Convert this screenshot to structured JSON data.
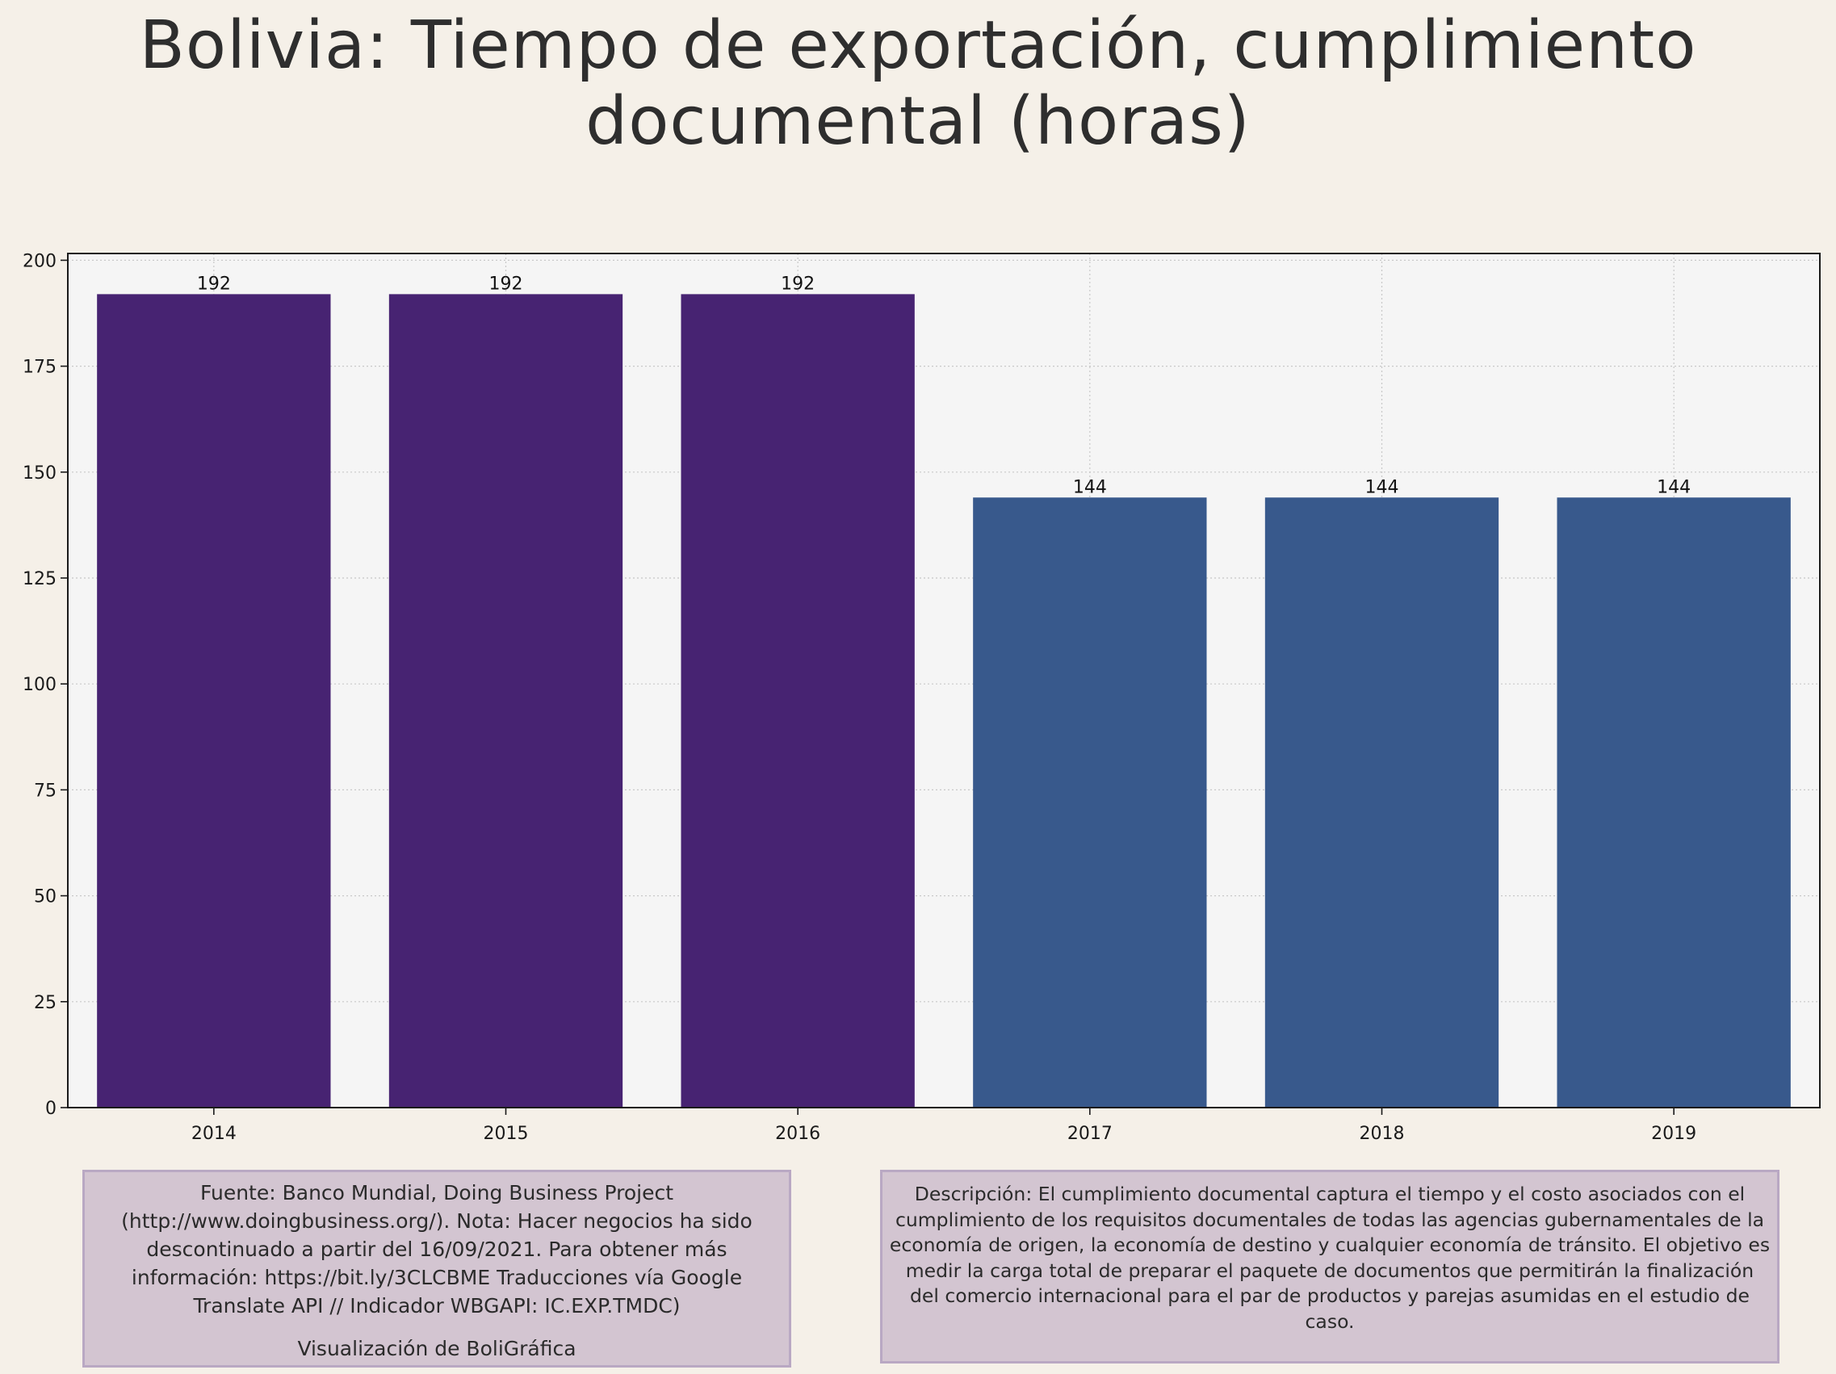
{
  "title_lines": [
    "Bolivia:  Tiempo de exportación, cumplimiento",
    "documental (horas)"
  ],
  "chart_data": {
    "type": "bar",
    "title": "Bolivia:  Tiempo de exportación, cumplimiento documental (horas)",
    "categories": [
      "2014",
      "2015",
      "2016",
      "2017",
      "2018",
      "2019"
    ],
    "values": [
      192,
      192,
      192,
      144,
      144,
      144
    ],
    "data_labels": [
      "192",
      "192",
      "192",
      "144",
      "144",
      "144"
    ],
    "bar_colors": [
      "#472372",
      "#472372",
      "#472372",
      "#38598c",
      "#38598c",
      "#38598c"
    ],
    "ylim": [
      0,
      201.6
    ],
    "yticks": [
      0,
      25,
      50,
      75,
      100,
      125,
      150,
      175,
      200
    ],
    "xlabel": "",
    "ylabel": "",
    "grid": true,
    "plot_background": "#f5f5f5"
  },
  "source_note": {
    "text": "Fuente: Banco Mundial, Doing Business Project (http://www.doingbusiness.org/). Nota: Hacer negocios ha sido descontinuado a partir del 16/09/2021. Para obtener más información: https://bit.ly/3CLCBME Traducciones vía Google Translate API // Indicador WBGAPI: IC.EXP.TMDC)",
    "credit": "Visualización de BoliGráfica"
  },
  "description_note": {
    "text": "Descripción: El cumplimiento documental captura el tiempo y el costo asociados con el cumplimiento de los requisitos documentales de todas las agencias gubernamentales de la economía de origen, la economía de destino y cualquier economía de tránsito. El objetivo es medir la carga total de preparar el paquete de documentos que permitirán la finalización del comercio internacional para el par de productos y parejas asumidas en el estudio de caso."
  }
}
